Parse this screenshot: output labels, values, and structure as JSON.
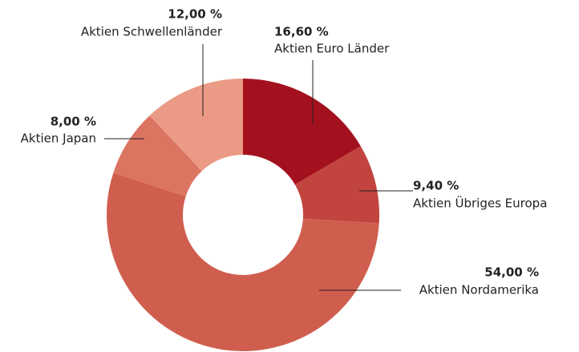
{
  "chart_data": {
    "type": "pie",
    "categories": [
      "Aktien Euro Länder",
      "Aktien Übriges Europa",
      "Aktien Nordamerika",
      "Aktien Japan",
      "Aktien Schwellenländer"
    ],
    "values": [
      16.6,
      9.4,
      54.0,
      8.0,
      12.0
    ],
    "value_labels": [
      "16,60 %",
      "9,40 %",
      "54,00 %",
      "8,00 %",
      "12,00 %"
    ],
    "colors": [
      "#a3111f",
      "#c2443f",
      "#d05e4f",
      "#dc7462",
      "#ea9a85"
    ]
  }
}
